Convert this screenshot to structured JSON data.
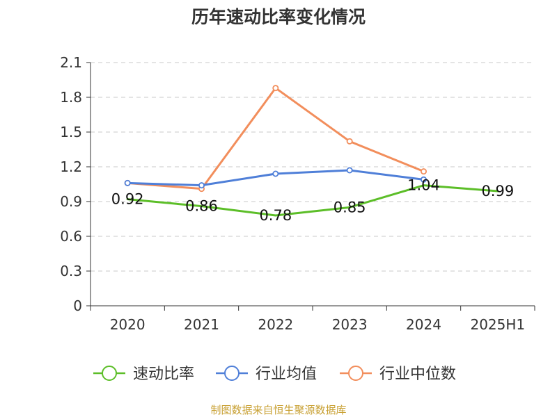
{
  "chart_data": {
    "type": "line",
    "title": "历年速动比率变化情况",
    "categories": [
      "2020",
      "2021",
      "2022",
      "2023",
      "2024",
      "2025H1"
    ],
    "ylim": [
      0,
      2.1
    ],
    "yticks": [
      "0",
      "0.3",
      "0.6",
      "0.9",
      "1.2",
      "1.5",
      "1.8",
      "2.1"
    ],
    "grid": true,
    "legend_position": "bottom",
    "series": [
      {
        "name": "速动比率",
        "color": "#5cbe28",
        "values": [
          0.92,
          0.86,
          0.78,
          0.85,
          1.04,
          0.99
        ],
        "labels": [
          "0.92",
          "0.86",
          "0.78",
          "0.85",
          "1.04",
          "0.99"
        ]
      },
      {
        "name": "行业均值",
        "color": "#4f7fd8",
        "values": [
          1.06,
          1.04,
          1.14,
          1.17,
          1.09,
          null
        ]
      },
      {
        "name": "行业中位数",
        "color": "#f28e5c",
        "values": [
          1.06,
          1.01,
          1.88,
          1.42,
          1.16,
          null
        ]
      }
    ]
  },
  "footer": {
    "source": "制图数据来自恒生聚源数据库"
  }
}
